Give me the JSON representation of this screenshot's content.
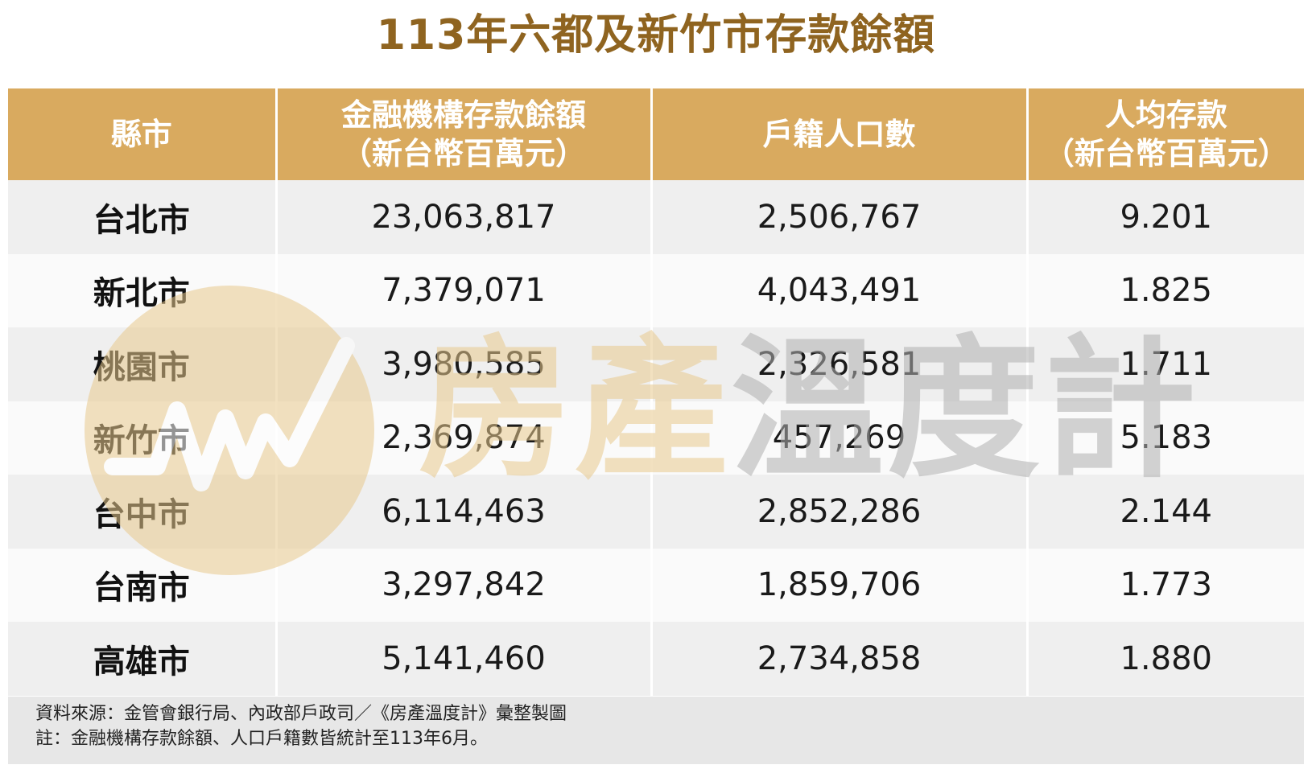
{
  "title": "113年六都及新竹市存款餘額",
  "table": {
    "headers": [
      {
        "line1": "縣市",
        "line2": ""
      },
      {
        "line1": "金融機構存款餘額",
        "line2": "（新台幣百萬元）"
      },
      {
        "line1": "戶籍人口數",
        "line2": ""
      },
      {
        "line1": "人均存款",
        "line2": "（新台幣百萬元）"
      }
    ],
    "rows": [
      {
        "city": "台北市",
        "deposits": "23,063,817",
        "population": "2,506,767",
        "per_capita": "9.201"
      },
      {
        "city": "新北市",
        "deposits": "7,379,071",
        "population": "4,043,491",
        "per_capita": "1.825"
      },
      {
        "city": "桃園市",
        "deposits": "3,980,585",
        "population": "2,326,581",
        "per_capita": "1.711"
      },
      {
        "city": "新竹市",
        "deposits": "2,369,874",
        "population": "457,269",
        "per_capita": "5.183"
      },
      {
        "city": "台中市",
        "deposits": "6,114,463",
        "population": "2,852,286",
        "per_capita": "2.144"
      },
      {
        "city": "台南市",
        "deposits": "3,297,842",
        "population": "1,859,706",
        "per_capita": "1.773"
      },
      {
        "city": "高雄市",
        "deposits": "5,141,460",
        "population": "2,734,858",
        "per_capita": "1.880"
      }
    ]
  },
  "footer": {
    "source": "資料來源：金管會銀行局、內政部戶政司／《房產溫度計》彙整製圖",
    "note": "註：金融機構存款餘額、人口戶籍數皆統計至113年6月。"
  },
  "watermark": {
    "text_part1": "房產",
    "text_part2": "溫度計"
  },
  "colors": {
    "title": "#8f6420",
    "header_bg": "#d9aa5f",
    "row_odd": "#efefef",
    "row_even": "#fafafa",
    "footer_bg": "#e7e7e7",
    "watermark_gold": "#e8c98e",
    "watermark_gray": "#b0b0b0"
  }
}
